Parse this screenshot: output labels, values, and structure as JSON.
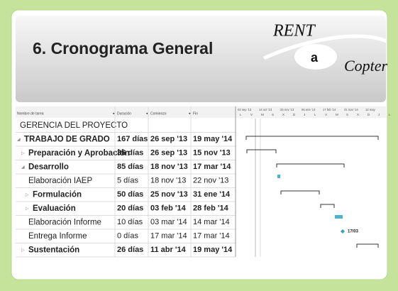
{
  "header": {
    "title": "6. Cronograma General",
    "logo": {
      "top": "RENT",
      "middle": "a",
      "bottom": "Copter"
    }
  },
  "table": {
    "columns": [
      "Nombre de tarea",
      "Duración",
      "Comienzo",
      "Fin"
    ],
    "rows": [
      {
        "name": "GERENCIA DEL PROYECTO",
        "level": 0,
        "bold": false
      },
      {
        "name": "TRABAJO DE GRADO",
        "duration": "167 días",
        "start": "26 sep '13",
        "end": "19 may '14",
        "level": 0,
        "bold": true
      },
      {
        "name": "Preparación y Aprobación",
        "duration": "36 días",
        "start": "26 sep '13",
        "end": "15 nov '13",
        "level": 1,
        "bold": true
      },
      {
        "name": "Desarrollo",
        "duration": "85 días",
        "start": "18 nov '13",
        "end": "17 mar '14",
        "level": 1,
        "bold": true
      },
      {
        "name": "Elaboración IAEP",
        "duration": "5 días",
        "start": "18 nov '13",
        "end": "22 nov '13",
        "level": 2,
        "bold": false
      },
      {
        "name": "Formulación",
        "duration": "50 días",
        "start": "25 nov '13",
        "end": "31 ene '14",
        "level": 2,
        "bold": true
      },
      {
        "name": "Evaluación",
        "duration": "20 días",
        "start": "03 feb '14",
        "end": "28 feb '14",
        "level": 2,
        "bold": true
      },
      {
        "name": "Elaboración Informe",
        "duration": "10 días",
        "start": "03 mar '14",
        "end": "14 mar '14",
        "level": 2,
        "bold": false
      },
      {
        "name": "Entrega Informe",
        "duration": "0 días",
        "start": "17 mar '14",
        "end": "17 mar '14",
        "level": 2,
        "bold": false
      },
      {
        "name": "Sustentación",
        "duration": "26 días",
        "start": "11 abr '14",
        "end": "19 may '14",
        "level": 1,
        "bold": true
      }
    ]
  },
  "gantt": {
    "periods": [
      "02 sep '13",
      "14 oct '13",
      "25 nov '13",
      "06 ene '14",
      "17 feb '14",
      "31 mar '14",
      "12 may"
    ],
    "days": [
      "L",
      "V",
      "M",
      "S",
      "X",
      "D",
      "J",
      "L",
      "V",
      "M",
      "S",
      "X",
      "D",
      "J",
      "L"
    ],
    "milestone_label": "17/03"
  }
}
